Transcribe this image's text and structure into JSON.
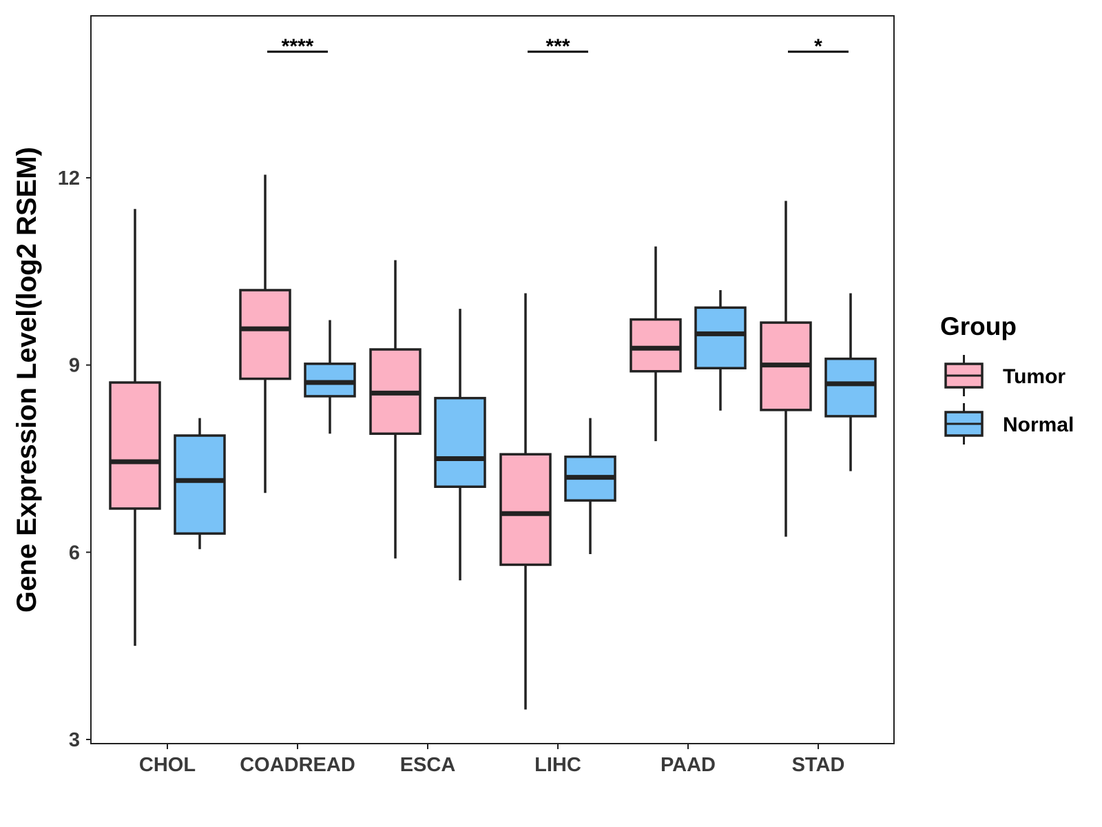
{
  "chart_data": {
    "type": "boxplot",
    "title": "",
    "xlabel": "",
    "ylabel": "Gene Expression Level(log2 RSEM)",
    "ylim": [
      3,
      14.6
    ],
    "yticks": [
      3,
      6,
      9,
      12
    ],
    "ytick_labels": [
      "3",
      "6",
      "9",
      "12"
    ],
    "categories": [
      "CHOL",
      "COADREAD",
      "ESCA",
      "LIHC",
      "PAAD",
      "STAD"
    ],
    "grid": false,
    "legend": {
      "title": "Group",
      "position": "right",
      "entries": [
        {
          "name": "Tumor",
          "color": "#FCB1C3"
        },
        {
          "name": "Normal",
          "color": "#79C2F7"
        }
      ]
    },
    "series": [
      {
        "name": "Tumor",
        "color": "#FCB1C3",
        "boxes": [
          {
            "category": "CHOL",
            "min": 4.5,
            "q1": 6.7,
            "median": 7.45,
            "q3": 8.72,
            "max": 11.5
          },
          {
            "category": "COADREAD",
            "min": 6.95,
            "q1": 8.78,
            "median": 9.58,
            "q3": 10.2,
            "max": 12.05
          },
          {
            "category": "ESCA",
            "min": 5.9,
            "q1": 7.9,
            "median": 8.55,
            "q3": 9.25,
            "max": 10.68
          },
          {
            "category": "LIHC",
            "min": 3.48,
            "q1": 5.8,
            "median": 6.62,
            "q3": 7.57,
            "max": 10.15
          },
          {
            "category": "PAAD",
            "min": 7.78,
            "q1": 8.9,
            "median": 9.27,
            "q3": 9.73,
            "max": 10.9
          },
          {
            "category": "STAD",
            "min": 6.25,
            "q1": 8.28,
            "median": 9.0,
            "q3": 9.68,
            "max": 11.63
          }
        ]
      },
      {
        "name": "Normal",
        "color": "#79C2F7",
        "boxes": [
          {
            "category": "CHOL",
            "min": 6.05,
            "q1": 6.3,
            "median": 7.15,
            "q3": 7.87,
            "max": 8.15
          },
          {
            "category": "COADREAD",
            "min": 7.9,
            "q1": 8.5,
            "median": 8.72,
            "q3": 9.02,
            "max": 9.72
          },
          {
            "category": "ESCA",
            "min": 5.55,
            "q1": 7.05,
            "median": 7.5,
            "q3": 8.47,
            "max": 9.9
          },
          {
            "category": "LIHC",
            "min": 5.97,
            "q1": 6.83,
            "median": 7.2,
            "q3": 7.53,
            "max": 8.15
          },
          {
            "category": "PAAD",
            "min": 8.27,
            "q1": 8.95,
            "median": 9.5,
            "q3": 9.92,
            "max": 10.2
          },
          {
            "category": "STAD",
            "min": 7.3,
            "q1": 8.18,
            "median": 8.7,
            "q3": 9.1,
            "max": 10.15
          }
        ]
      }
    ],
    "significance": [
      {
        "category": "COADREAD",
        "label": "****"
      },
      {
        "category": "LIHC",
        "label": "***"
      },
      {
        "category": "STAD",
        "label": "*"
      }
    ]
  }
}
